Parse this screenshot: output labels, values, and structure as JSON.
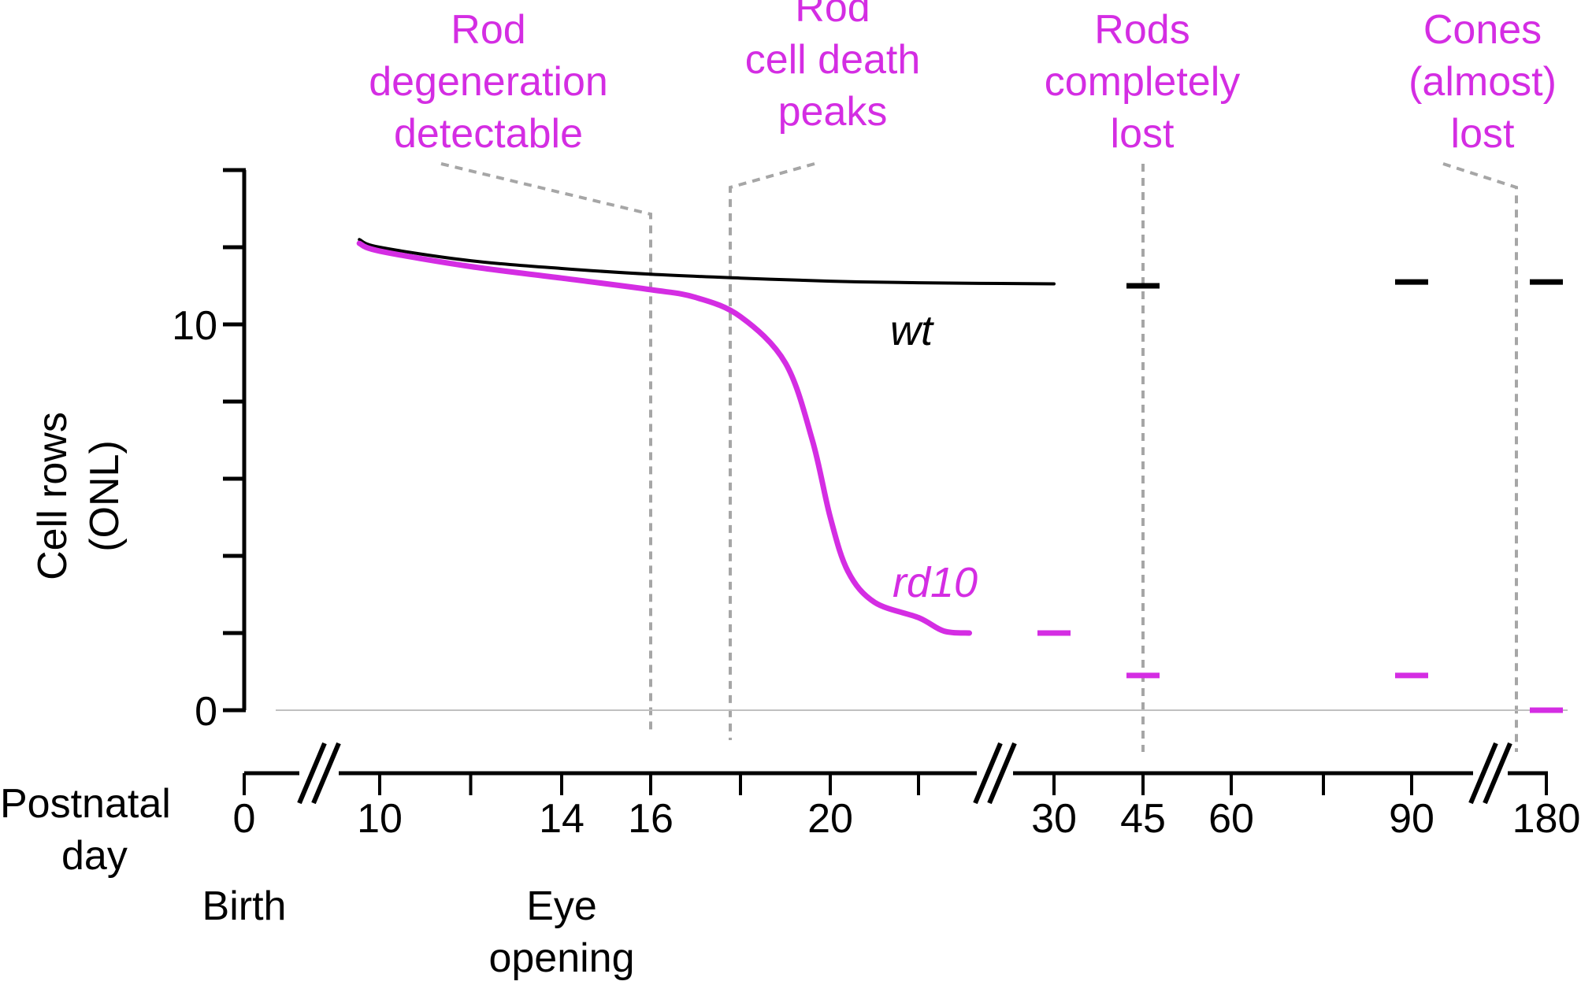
{
  "chart_data": {
    "type": "line",
    "ylabel_line1": "Cell rows",
    "ylabel_line2": "(ONL)",
    "xlabel_line1": "Postnatal",
    "xlabel_line2": "day",
    "y_ticks": [
      {
        "value": 0,
        "label": "0"
      },
      {
        "value": 2,
        "label": ""
      },
      {
        "value": 4,
        "label": ""
      },
      {
        "value": 6,
        "label": ""
      },
      {
        "value": 8,
        "label": ""
      },
      {
        "value": 10,
        "label": "10"
      },
      {
        "value": 12,
        "label": ""
      },
      {
        "value": 14,
        "label": ""
      }
    ],
    "ylim": [
      0,
      14
    ],
    "x_ticks": [
      {
        "value": 0,
        "label": "0"
      },
      {
        "value": 10,
        "label": "10"
      },
      {
        "value": 12,
        "label": ""
      },
      {
        "value": 14,
        "label": "14"
      },
      {
        "value": 16,
        "label": "16"
      },
      {
        "value": 18,
        "label": ""
      },
      {
        "value": 20,
        "label": "20"
      },
      {
        "value": 22,
        "label": ""
      },
      {
        "value": 30,
        "label": "30"
      },
      {
        "value": 45,
        "label": "45"
      },
      {
        "value": 60,
        "label": "60"
      },
      {
        "value": 75,
        "label": ""
      },
      {
        "value": 90,
        "label": "90"
      },
      {
        "value": 180,
        "label": "180"
      }
    ],
    "axis_breaks": [
      {
        "between": [
          0,
          10
        ]
      },
      {
        "between": [
          22,
          30
        ]
      },
      {
        "between": [
          90,
          180
        ]
      }
    ],
    "series": [
      {
        "name": "wt",
        "color": "#000000",
        "curve": [
          [
            8.5,
            12.2
          ],
          [
            10,
            12.0
          ],
          [
            12,
            11.65
          ],
          [
            14,
            11.45
          ],
          [
            16,
            11.3
          ],
          [
            18,
            11.2
          ],
          [
            20,
            11.12
          ],
          [
            22,
            11.08
          ],
          [
            30,
            11.05
          ]
        ],
        "markers": [
          [
            45,
            11.0
          ],
          [
            90,
            11.1
          ],
          [
            180,
            11.1
          ]
        ]
      },
      {
        "name": "rd10",
        "color": "#d42de3",
        "curve": [
          [
            8.5,
            12.1
          ],
          [
            10,
            11.9
          ],
          [
            12,
            11.5
          ],
          [
            14,
            11.2
          ],
          [
            16,
            10.9
          ],
          [
            17,
            10.7
          ],
          [
            18,
            10.2
          ],
          [
            19,
            9.0
          ],
          [
            19.6,
            7.0
          ],
          [
            20,
            5.0
          ],
          [
            20.4,
            3.6
          ],
          [
            21,
            2.8
          ],
          [
            22,
            2.4
          ],
          [
            23.5,
            2.05
          ],
          [
            25,
            2.0
          ]
        ],
        "markers": [
          [
            30,
            2.0
          ],
          [
            45,
            0.9
          ],
          [
            90,
            0.9
          ],
          [
            180,
            0.0
          ]
        ]
      }
    ],
    "milestones": [
      {
        "x": 16,
        "text": [
          "Rod",
          "degeneration",
          "detectable"
        ]
      },
      {
        "x": 18,
        "text": [
          "Rod",
          "cell death",
          "peaks"
        ]
      },
      {
        "x": 45,
        "text": [
          "Rods",
          "completely",
          "lost"
        ]
      },
      {
        "x": 180,
        "text": [
          "Cones",
          "(almost)",
          "lost"
        ]
      }
    ],
    "events": [
      {
        "x": 0,
        "text": [
          "Birth"
        ]
      },
      {
        "x": 14,
        "text": [
          "Eye",
          "opening"
        ]
      }
    ],
    "colors": {
      "rd10": "#d42de3",
      "wt": "#000000",
      "guide": "#a6a6a6",
      "baseline": "#c0c0c0"
    }
  }
}
